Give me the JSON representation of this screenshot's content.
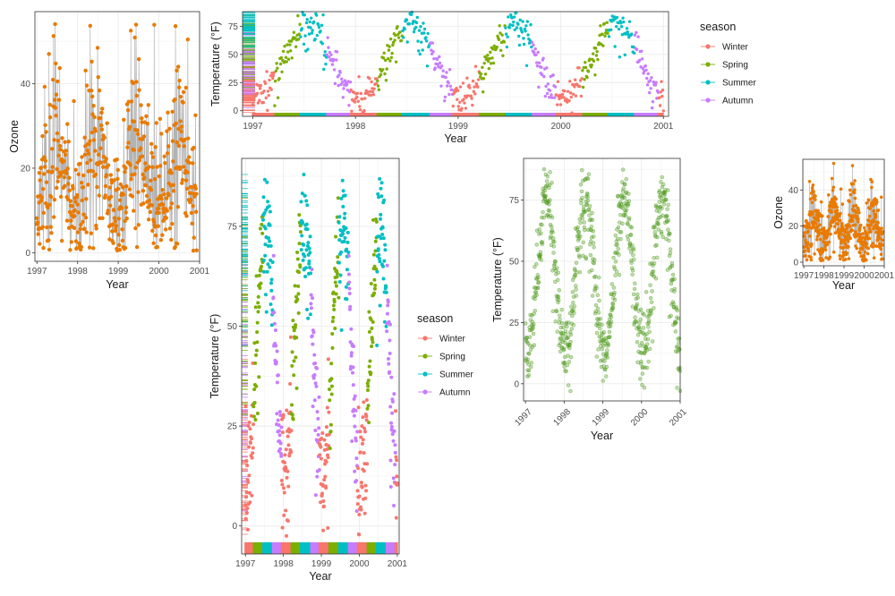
{
  "colors": {
    "winter": "#F8766D",
    "spring": "#7CAE00",
    "summer": "#00BFC4",
    "autumn": "#C77CFF",
    "ozone": "#E97A00",
    "ozone_line": "#b3b3b3",
    "green": "#4d9a1a"
  },
  "chart_data": [
    {
      "id": "ozone_large",
      "type": "line",
      "xlabel": "Year",
      "ylabel": "Ozone",
      "xlim": [
        1996.95,
        2001.0
      ],
      "ylim": [
        -2,
        57
      ],
      "x_ticks": [
        "1997",
        "1998",
        "1999",
        "2000",
        "2001"
      ],
      "y_ticks": [
        "0",
        "20",
        "40"
      ],
      "grid": true,
      "series": [
        {
          "color": "ozone",
          "profile": {
            "x": [
              1997.0,
              1997.25,
              1997.5,
              1997.75,
              1998.0,
              1998.25,
              1998.5,
              1998.75,
              1999.0,
              1999.25,
              1999.5,
              1999.75,
              2000.0,
              2000.25,
              2000.5,
              2000.75,
              2001.0
            ],
            "y_center": [
              13,
              22,
              25,
              17,
              9,
              20,
              27,
              20,
              10,
              21,
              26,
              20,
              11,
              20,
              25,
              18,
              8
            ],
            "y_spread": [
              8,
              10,
              15,
              12,
              9,
              11,
              12,
              10,
              8,
              11,
              14,
              11,
              8,
              11,
              13,
              11,
              6
            ]
          }
        }
      ]
    },
    {
      "id": "temp_wide",
      "type": "scatter",
      "xlabel": "Year",
      "ylabel": "Temperature (°F)",
      "xlim": [
        1996.9,
        2001.05
      ],
      "ylim": [
        -5,
        88
      ],
      "x_ticks": [
        "1997",
        "1998",
        "1999",
        "2000",
        "2001"
      ],
      "y_ticks": [
        "0",
        "25",
        "50",
        "75"
      ],
      "grid": true,
      "rug": [
        "left",
        "bottom"
      ],
      "legend": {
        "title": "season",
        "position": "right",
        "entries": [
          "Winter",
          "Spring",
          "Summer",
          "Autumn"
        ]
      },
      "series": [
        {
          "name": "Winter",
          "color": "winter"
        },
        {
          "name": "Spring",
          "color": "spring"
        },
        {
          "name": "Summer",
          "color": "summer"
        },
        {
          "name": "Autumn",
          "color": "autumn"
        }
      ],
      "temperature_profile": {
        "x": [
          1997.0,
          1997.15,
          1997.3,
          1997.5,
          1997.65,
          1997.8,
          1998.0,
          1998.2,
          1998.5,
          1998.7,
          1998.9,
          1999.0,
          1999.2,
          1999.5,
          1999.7,
          1999.9,
          2000.0,
          2000.2,
          2000.5,
          2000.7,
          2000.9,
          2001.0
        ],
        "y": [
          25,
          38,
          55,
          75,
          70,
          45,
          35,
          50,
          73,
          66,
          38,
          20,
          48,
          78,
          68,
          40,
          28,
          52,
          75,
          67,
          30,
          20
        ]
      }
    },
    {
      "id": "temp_tall",
      "type": "scatter",
      "xlabel": "Year",
      "ylabel": "Temperature (°F)",
      "xlim": [
        1996.9,
        2001.05
      ],
      "ylim": [
        -7,
        92
      ],
      "x_ticks": [
        "1997",
        "1998",
        "1999",
        "2000",
        "2001"
      ],
      "y_ticks": [
        "0",
        "25",
        "50",
        "75"
      ],
      "grid": true,
      "rug": [
        "left",
        "bottom"
      ],
      "legend": {
        "title": "season",
        "position": "right",
        "entries": [
          "Winter",
          "Spring",
          "Summer",
          "Autumn"
        ]
      },
      "series": [
        {
          "name": "Winter",
          "color": "winter"
        },
        {
          "name": "Spring",
          "color": "spring"
        },
        {
          "name": "Summer",
          "color": "summer"
        },
        {
          "name": "Autumn",
          "color": "autumn"
        }
      ]
    },
    {
      "id": "temp_green",
      "type": "scatter",
      "xlabel": "Year",
      "ylabel": "Temperature (°F)",
      "xlim": [
        1996.95,
        2001.0
      ],
      "ylim": [
        -7,
        92
      ],
      "x_ticks": [
        "1997",
        "1998",
        "1999",
        "2000",
        "2001"
      ],
      "x_tick_rotation": -45,
      "y_ticks": [
        "0",
        "25",
        "50",
        "75"
      ],
      "grid": true,
      "series": [
        {
          "color": "green"
        }
      ]
    },
    {
      "id": "ozone_small",
      "type": "line",
      "xlabel": "Year",
      "ylabel": "Ozone",
      "xlim": [
        1996.95,
        2001.0
      ],
      "ylim": [
        -2,
        57
      ],
      "x_ticks": [
        "1997",
        "1998",
        "1999",
        "2000",
        "2001"
      ],
      "y_ticks": [
        "0",
        "20",
        "40"
      ],
      "grid": true,
      "series": [
        {
          "color": "ozone"
        }
      ]
    }
  ]
}
